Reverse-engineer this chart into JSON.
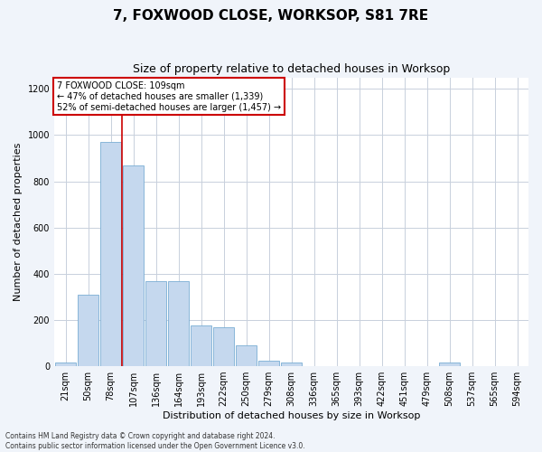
{
  "title": "7, FOXWOOD CLOSE, WORKSOP, S81 7RE",
  "subtitle": "Size of property relative to detached houses in Worksop",
  "xlabel": "Distribution of detached houses by size in Worksop",
  "ylabel": "Number of detached properties",
  "categories": [
    "21sqm",
    "50sqm",
    "78sqm",
    "107sqm",
    "136sqm",
    "164sqm",
    "193sqm",
    "222sqm",
    "250sqm",
    "279sqm",
    "308sqm",
    "336sqm",
    "365sqm",
    "393sqm",
    "422sqm",
    "451sqm",
    "479sqm",
    "508sqm",
    "537sqm",
    "565sqm",
    "594sqm"
  ],
  "values": [
    15,
    310,
    970,
    870,
    370,
    370,
    175,
    170,
    90,
    25,
    15,
    0,
    0,
    0,
    0,
    0,
    0,
    15,
    0,
    0,
    0
  ],
  "bar_color": "#c5d8ee",
  "bar_edge_color": "#7aadd4",
  "red_line_x": 3.0,
  "annotation_text": "7 FOXWOOD CLOSE: 109sqm\n← 47% of detached houses are smaller (1,339)\n52% of semi-detached houses are larger (1,457) →",
  "annotation_box_color": "#ffffff",
  "annotation_box_edge": "#cc0000",
  "ylim": [
    0,
    1250
  ],
  "yticks": [
    0,
    200,
    400,
    600,
    800,
    1000,
    1200
  ],
  "footnote": "Contains HM Land Registry data © Crown copyright and database right 2024.\nContains public sector information licensed under the Open Government Licence v3.0.",
  "bg_color": "#f0f4fa",
  "plot_bg_color": "#ffffff",
  "grid_color": "#c8d0dc",
  "title_fontsize": 11,
  "subtitle_fontsize": 9,
  "tick_fontsize": 7,
  "label_fontsize": 8,
  "annot_fontsize": 7
}
